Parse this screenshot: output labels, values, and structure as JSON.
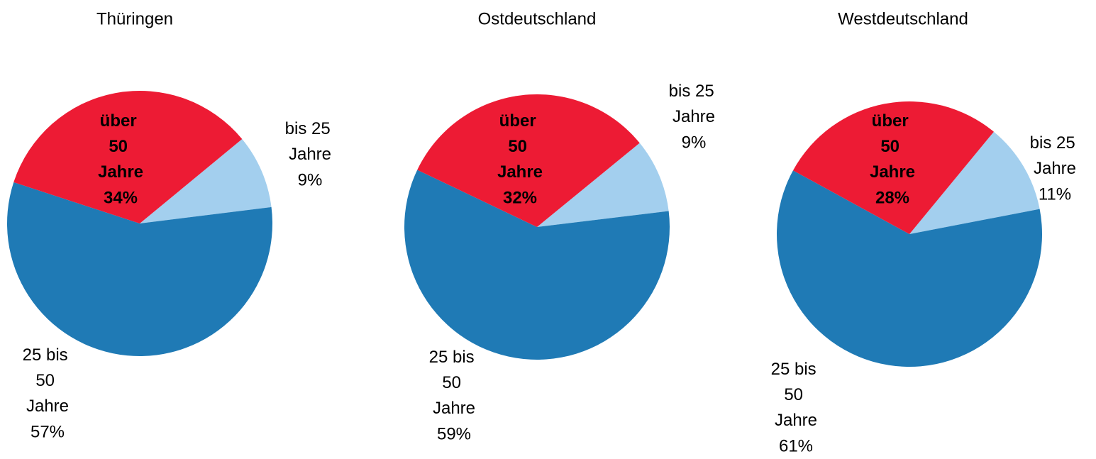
{
  "chart_data": [
    {
      "type": "pie",
      "title": "Thüringen",
      "categories": [
        "bis 25 Jahre",
        "25 bis 50 Jahre",
        "über 50 Jahre"
      ],
      "values": [
        9,
        57,
        34
      ],
      "value_labels": [
        "9%",
        "57%",
        "34%"
      ],
      "colors": [
        "#a3cfee",
        "#1f7ab5",
        "#ed1b34"
      ]
    },
    {
      "type": "pie",
      "title": "Ostdeutschland",
      "categories": [
        "bis 25 Jahre",
        "25 bis 50 Jahre",
        "über 50 Jahre"
      ],
      "values": [
        9,
        59,
        32
      ],
      "value_labels": [
        "9%",
        "59%",
        "32%"
      ],
      "colors": [
        "#a3cfee",
        "#1f7ab5",
        "#ed1b34"
      ]
    },
    {
      "type": "pie",
      "title": "Westdeutschland",
      "categories": [
        "bis 25 Jahre",
        "25 bis 50 Jahre",
        "über 50 Jahre"
      ],
      "values": [
        11,
        61,
        28
      ],
      "value_labels": [
        "11%",
        "61%",
        "28%"
      ],
      "colors": [
        "#a3cfee",
        "#1f7ab5",
        "#ed1b34"
      ]
    }
  ]
}
